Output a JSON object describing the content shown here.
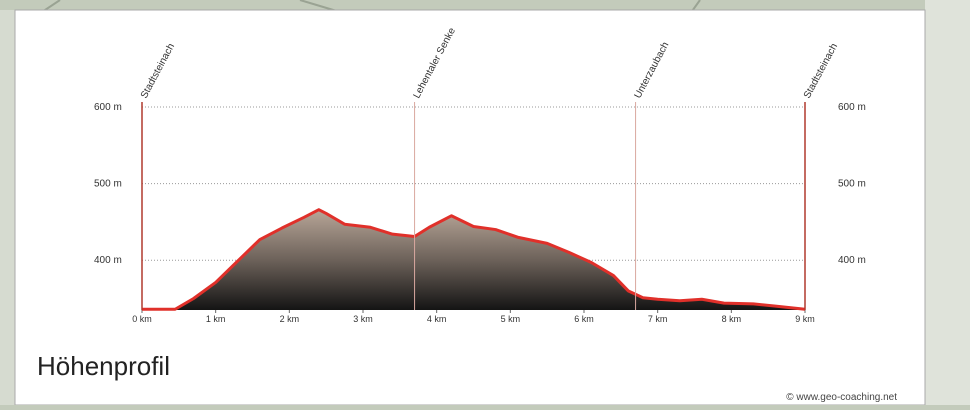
{
  "chart_data": {
    "type": "area",
    "title": "Höhenprofil",
    "credit": "© www.geo-coaching.net",
    "x": [
      0,
      0.45,
      0.7,
      1.0,
      1.3,
      1.6,
      1.9,
      2.2,
      2.4,
      2.5,
      2.75,
      3.1,
      3.4,
      3.7,
      3.9,
      4.2,
      4.5,
      4.8,
      5.1,
      5.5,
      5.8,
      6.1,
      6.4,
      6.6,
      6.8,
      7.0,
      7.3,
      7.6,
      7.9,
      8.3,
      8.6,
      9.0
    ],
    "values": [
      336,
      336,
      350,
      371,
      399,
      427,
      442,
      456,
      466,
      461,
      447,
      443,
      434,
      431,
      443,
      458,
      444,
      440,
      430,
      422,
      410,
      397,
      380,
      360,
      351,
      349,
      347,
      349,
      344,
      343,
      340,
      336
    ],
    "color": "#e0302a",
    "xlim": [
      0,
      9
    ],
    "ylim": [
      335,
      600
    ],
    "xticks": [
      {
        "value": 0,
        "label": "0 km"
      },
      {
        "value": 1,
        "label": "1 km"
      },
      {
        "value": 2,
        "label": "2 km"
      },
      {
        "value": 3,
        "label": "3 km"
      },
      {
        "value": 4,
        "label": "4 km"
      },
      {
        "value": 5,
        "label": "5 km"
      },
      {
        "value": 6,
        "label": "6 km"
      },
      {
        "value": 7,
        "label": "7 km"
      },
      {
        "value": 8,
        "label": "8 km"
      },
      {
        "value": 9,
        "label": "9 km"
      }
    ],
    "yticks": [
      {
        "value": 400,
        "label": "400 m"
      },
      {
        "value": 500,
        "label": "500 m"
      },
      {
        "value": 600,
        "label": "600 m"
      }
    ],
    "grid": true,
    "waypoints": [
      {
        "x": 0,
        "label": "Stadtsteinach"
      },
      {
        "x": 3.7,
        "label": "Lehentaler Senke"
      },
      {
        "x": 6.7,
        "label": "Unterzaubach"
      },
      {
        "x": 9.0,
        "label": "Stadtsteinach"
      }
    ]
  }
}
